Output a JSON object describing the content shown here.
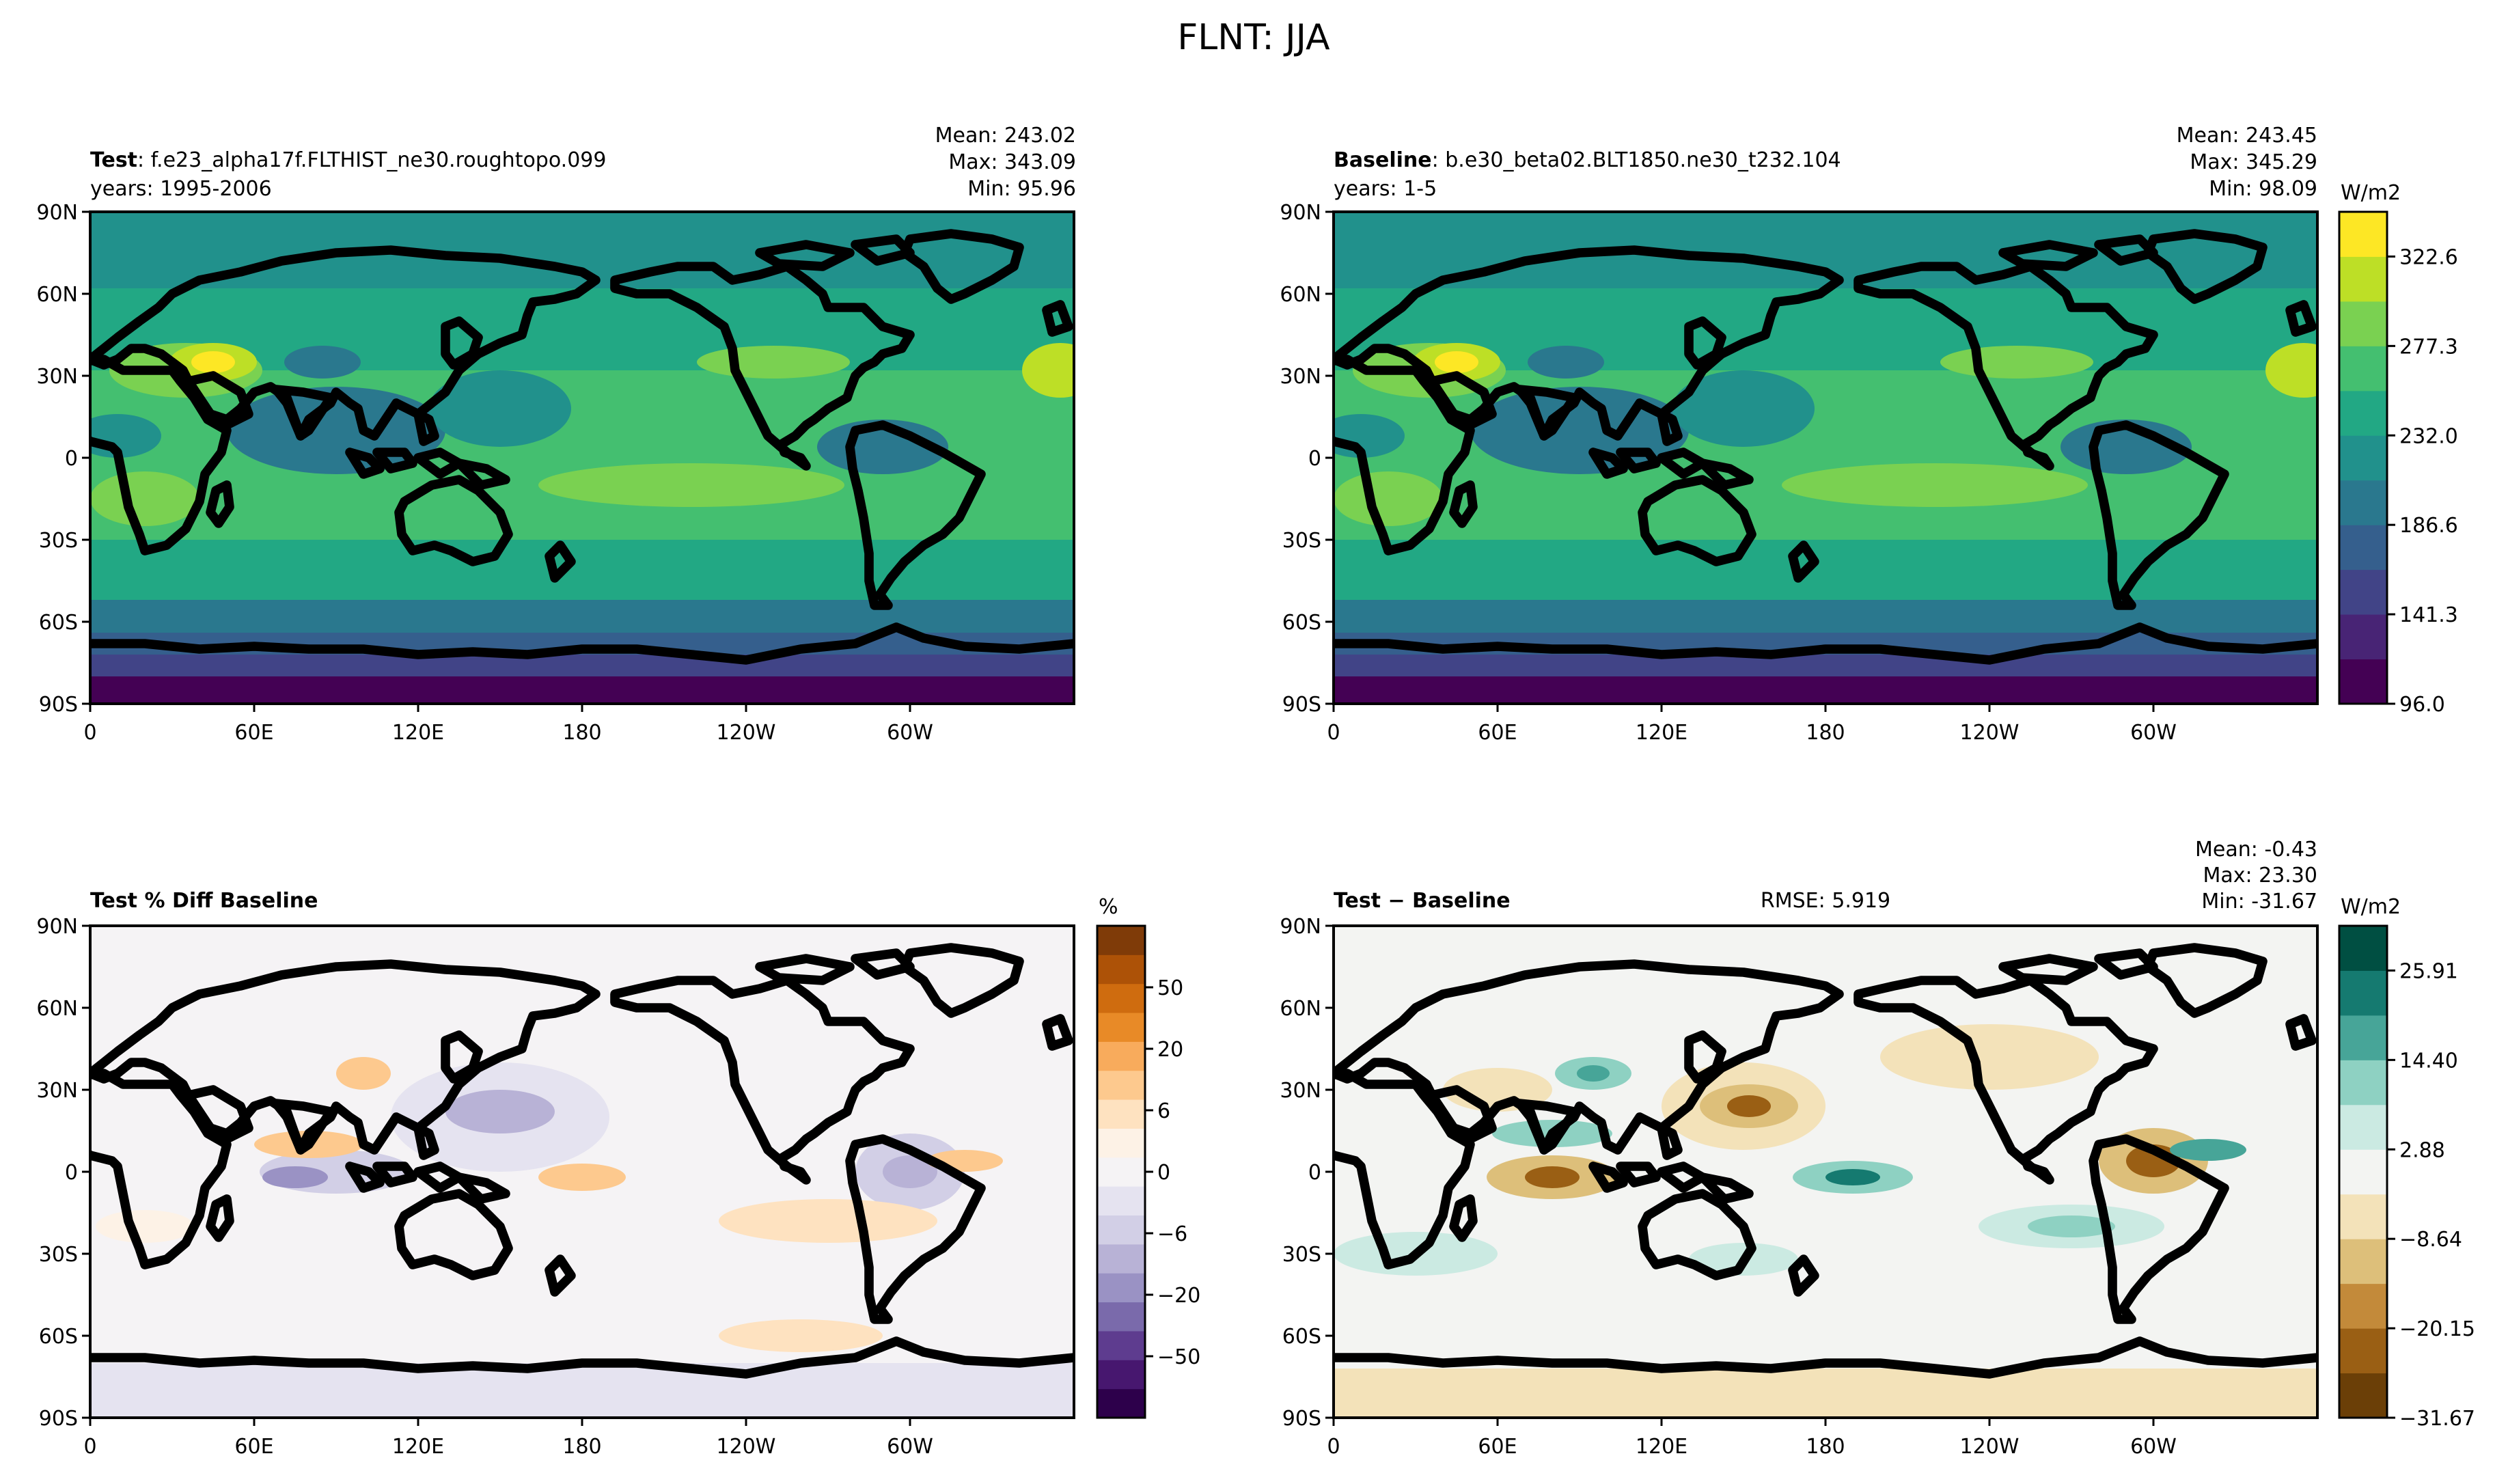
{
  "figure": {
    "suptitle": "FLNT: JJA"
  },
  "axes_labels": {
    "lat_ticks": [
      "90N",
      "60N",
      "30N",
      "0",
      "30S",
      "60S",
      "90S"
    ],
    "lon_ticks": [
      "0",
      "60E",
      "120E",
      "180",
      "120W",
      "60W"
    ]
  },
  "panels": {
    "test": {
      "label_bold": "Test",
      "label_rest": ": f.e23_alpha17f.FLTHIST_ne30.roughtopo.099",
      "years": "years: 1995-2006",
      "stats": [
        "Mean: 243.02",
        "Max: 343.09",
        "Min: 95.96"
      ]
    },
    "baseline": {
      "label_bold": "Baseline",
      "label_rest": ": b.e30_beta02.BLT1850.ne30_t232.104",
      "years": "years: 1-5",
      "stats": [
        "Mean: 243.45",
        "Max: 345.29",
        "Min: 98.09"
      ]
    },
    "pctdiff": {
      "label_bold": "Test % Diff Baseline"
    },
    "diff": {
      "label_bold": "Test − Baseline",
      "rmse": "RMSE: 5.919",
      "stats": [
        "Mean: -0.43",
        "Max: 23.30",
        "Min: -31.67"
      ]
    }
  },
  "colorbars": {
    "fields": {
      "unit": "W/m2",
      "colors": [
        "#440154",
        "#482475",
        "#414487",
        "#355f8d",
        "#2a788e",
        "#21918c",
        "#22a884",
        "#44bf70",
        "#7ad151",
        "#bddf26",
        "#fde725"
      ],
      "tick_labels": [
        "96.0",
        "141.3",
        "186.6",
        "232.0",
        "277.3",
        "322.6"
      ]
    },
    "pctdiff": {
      "unit": "%",
      "colors": [
        "#2d004b",
        "#47176f",
        "#5e3c8f",
        "#7a6aab",
        "#9a92c4",
        "#b8b2d6",
        "#d2cfe6",
        "#e5e3f0",
        "#f5f3f5",
        "#fdf2e6",
        "#fee2c0",
        "#fdc98e",
        "#f8ab5c",
        "#e88a27",
        "#cf6c0f",
        "#ad5207",
        "#7f3b08"
      ],
      "tick_labels": [
        "−50",
        "−20",
        "−6",
        "0",
        "6",
        "20",
        "50"
      ]
    },
    "diff": {
      "unit": "W/m2",
      "colors": [
        "#6b3f07",
        "#9a5f14",
        "#c38a3a",
        "#ddbf7a",
        "#f3e2b9",
        "#f3f4f2",
        "#cbeae2",
        "#8ed1c2",
        "#47a598",
        "#157a70",
        "#004f42"
      ],
      "tick_labels": [
        "−31.67",
        "−20.15",
        "−8.64",
        "2.88",
        "14.40",
        "25.91"
      ]
    }
  },
  "chart_data": {
    "type": "heatmap",
    "title": "FLNT: JJA",
    "projection": "PlateCarree, central_longitude=180",
    "xlim": [
      0,
      360
    ],
    "ylim": [
      -90,
      90
    ],
    "panels": [
      {
        "name": "Test",
        "variable": "FLNT",
        "units": "W/m2",
        "mean": 243.02,
        "max": 343.09,
        "min": 95.96,
        "levels": [
          96.0,
          141.3,
          186.6,
          232.0,
          277.3,
          322.6
        ]
      },
      {
        "name": "Baseline",
        "variable": "FLNT",
        "units": "W/m2",
        "mean": 243.45,
        "max": 345.29,
        "min": 98.09,
        "levels": [
          96.0,
          141.3,
          186.6,
          232.0,
          277.3,
          322.6
        ]
      },
      {
        "name": "Test % Diff Baseline",
        "units": "%",
        "levels": [
          -50,
          -20,
          -6,
          0,
          6,
          20,
          50
        ]
      },
      {
        "name": "Test − Baseline",
        "units": "W/m2",
        "mean": -0.43,
        "max": 23.3,
        "min": -31.67,
        "rmse": 5.919,
        "levels": [
          -31.67,
          -20.15,
          -8.64,
          2.88,
          14.4,
          25.91
        ]
      }
    ]
  }
}
